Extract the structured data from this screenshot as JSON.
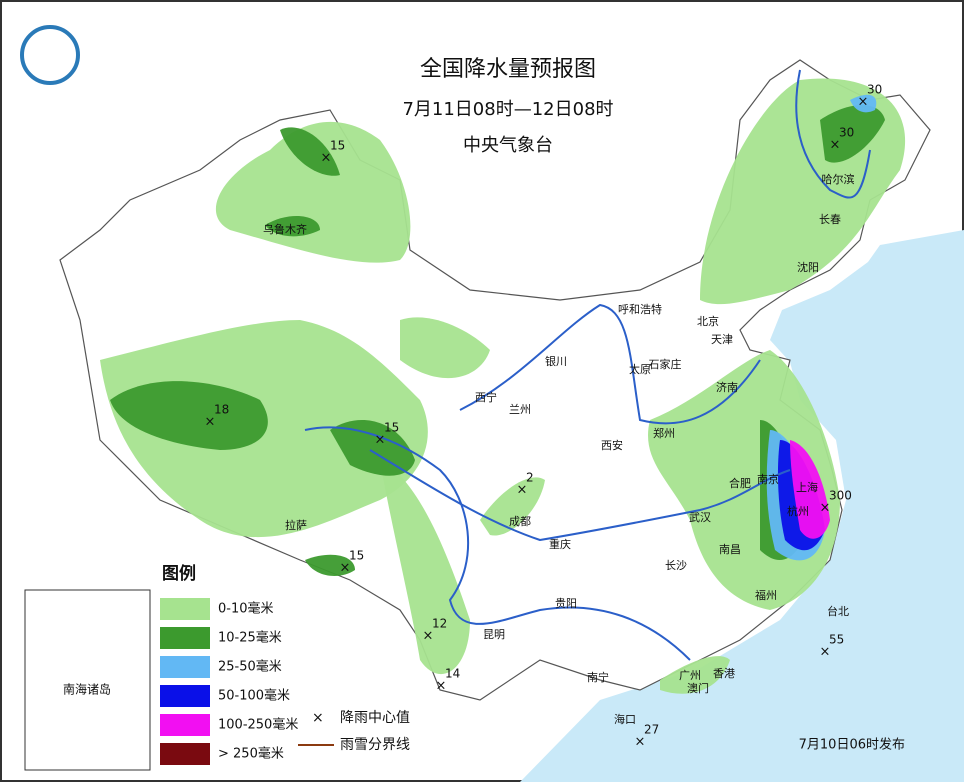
{
  "header": {
    "title": "全国降水量预报图",
    "period": "7月11日08时—12日08时",
    "issuer": "中央气象台"
  },
  "legend": {
    "title": "图例",
    "items": [
      {
        "label": "0-10毫米",
        "color": "#a6e38f"
      },
      {
        "label": "10-25毫米",
        "color": "#3c9a2e"
      },
      {
        "label": "25-50毫米",
        "color": "#62b8f4"
      },
      {
        "label": "50-100毫米",
        "color": "#0a10e8"
      },
      {
        "label": "100-250毫米",
        "color": "#f20ff2"
      },
      {
        "label": "> 250毫米",
        "color": "#7a0a10"
      }
    ],
    "center_label": "降雨中心值",
    "boundary_label": "雨雪分界线"
  },
  "inset_label": "南海诸岛",
  "cities": [
    "乌鲁木齐",
    "哈尔滨",
    "长春",
    "沈阳",
    "北京",
    "天津",
    "呼和浩特",
    "银川",
    "太原",
    "石家庄",
    "济南",
    "西宁",
    "兰州",
    "郑州",
    "西安",
    "合肥",
    "南京",
    "上海",
    "杭州",
    "武汉",
    "成都",
    "重庆",
    "长沙",
    "南昌",
    "拉萨",
    "贵阳",
    "昆明",
    "福州",
    "台北",
    "南宁",
    "广州",
    "香港",
    "澳门",
    "海口"
  ],
  "rain_centers": [
    15,
    30,
    30,
    18,
    15,
    2,
    15,
    12,
    14,
    300,
    55,
    27
  ],
  "footer": "7月10日06时发布"
}
